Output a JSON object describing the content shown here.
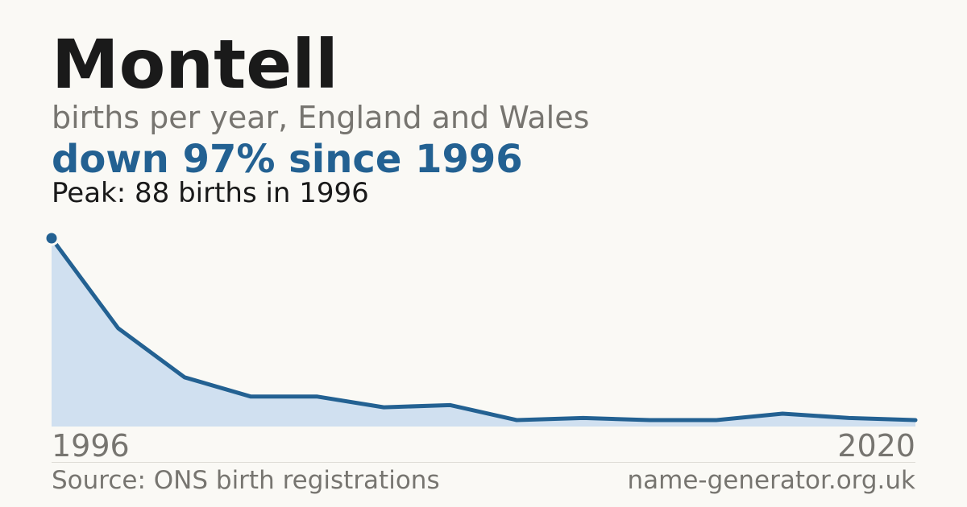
{
  "header": {
    "title": "Montell",
    "subtitle": "births per year, England and Wales",
    "headline": "down 97% since 1996",
    "peak_note": "Peak: 88 births in 1996"
  },
  "footer": {
    "source": "Source: ONS birth registrations",
    "site": "name-generator.org.uk"
  },
  "colors": {
    "line": "#236192",
    "area": "#d0e0f0",
    "background": "#faf9f5"
  },
  "chart_data": {
    "type": "area",
    "title": "",
    "xlabel": "",
    "ylabel": "",
    "x_tick_labels": [
      "1996",
      "2020"
    ],
    "x": [
      1996,
      1998,
      2000,
      2002,
      2004,
      2006,
      2008,
      2010,
      2012,
      2014,
      2016,
      2018,
      2020,
      2022
    ],
    "values": [
      88,
      46,
      23,
      14,
      14,
      9,
      10,
      3,
      4,
      3,
      3,
      6,
      4,
      3
    ],
    "ylim": [
      0,
      88
    ],
    "grid": false,
    "legend": "none",
    "highlight_point": {
      "x": 1996,
      "value": 88
    }
  }
}
